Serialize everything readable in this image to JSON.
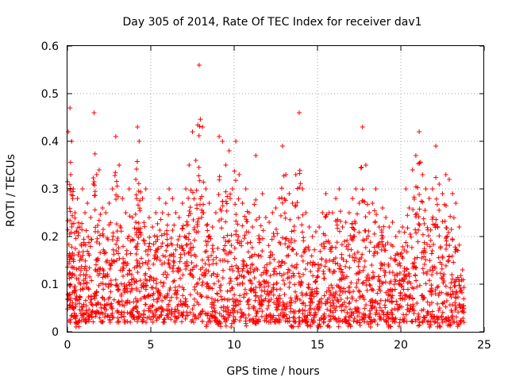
{
  "chart_data": {
    "type": "scatter",
    "title": "Day 305 of 2014, Rate Of TEC Index for receiver dav1",
    "xlabel": "GPS time / hours",
    "ylabel": "ROTI / TECUs",
    "xlim": [
      0,
      25
    ],
    "ylim": [
      0,
      0.6
    ],
    "x_ticks": [
      "0",
      "5",
      "10",
      "15",
      "20",
      "25"
    ],
    "y_ticks": [
      "0",
      "0.1",
      "0.2",
      "0.3",
      "0.4",
      "0.5",
      "0.6"
    ],
    "grid": true,
    "marker": "+",
    "color": "#ff0000",
    "series": [
      {
        "x": [
          0.05,
          0.15,
          0.25,
          0.35,
          0.45,
          0.6,
          0.75,
          0.9,
          1.05,
          1.2,
          1.4,
          1.6,
          1.75,
          1.9,
          2.1,
          2.3,
          2.5,
          2.7,
          2.9,
          3.1,
          3.3,
          3.5,
          3.7,
          3.9,
          4.1,
          4.2,
          4.3,
          4.5,
          4.7,
          4.9,
          5.1,
          5.3,
          5.5,
          5.7,
          5.9,
          6.1,
          6.3,
          6.5,
          6.7,
          6.9,
          7.1,
          7.3,
          7.5,
          7.7,
          7.9,
          8.1,
          8.3,
          8.5,
          8.7,
          8.9,
          9.1,
          9.3,
          9.5,
          9.7,
          9.9,
          10.1,
          10.3,
          10.5,
          10.7,
          10.9,
          11.1,
          11.3,
          11.5,
          11.7,
          11.9,
          12.1,
          12.3,
          12.5,
          12.7,
          12.9,
          13.1,
          13.3,
          13.5,
          13.7,
          13.9,
          14.1,
          14.3,
          14.5,
          14.7,
          14.9,
          15.1,
          15.3,
          15.5,
          15.7,
          15.9,
          16.1,
          16.3,
          16.5,
          16.7,
          16.9,
          17.1,
          17.3,
          17.5,
          17.7,
          17.9,
          18.1,
          18.3,
          18.5,
          18.7,
          18.9,
          19.1,
          19.3,
          19.5,
          19.7,
          19.9,
          20.1,
          20.3,
          20.5,
          20.7,
          20.9,
          21.1,
          21.3,
          21.5,
          21.7,
          21.9,
          22.1,
          22.3,
          22.5,
          22.7,
          22.9,
          23.1,
          23.3,
          23.5,
          23.7
        ],
        "y": [
          0.42,
          0.47,
          0.4,
          0.3,
          0.25,
          0.28,
          0.22,
          0.3,
          0.25,
          0.27,
          0.24,
          0.46,
          0.33,
          0.34,
          0.26,
          0.25,
          0.27,
          0.3,
          0.41,
          0.35,
          0.28,
          0.25,
          0.3,
          0.24,
          0.32,
          0.43,
          0.4,
          0.28,
          0.3,
          0.24,
          0.22,
          0.25,
          0.28,
          0.25,
          0.27,
          0.3,
          0.28,
          0.25,
          0.24,
          0.27,
          0.3,
          0.35,
          0.42,
          0.36,
          0.56,
          0.43,
          0.3,
          0.27,
          0.22,
          0.25,
          0.41,
          0.4,
          0.35,
          0.38,
          0.3,
          0.4,
          0.33,
          0.27,
          0.3,
          0.25,
          0.22,
          0.37,
          0.24,
          0.29,
          0.24,
          0.23,
          0.25,
          0.26,
          0.28,
          0.39,
          0.33,
          0.29,
          0.27,
          0.33,
          0.46,
          0.3,
          0.25,
          0.22,
          0.2,
          0.21,
          0.22,
          0.25,
          0.29,
          0.25,
          0.25,
          0.28,
          0.3,
          0.22,
          0.23,
          0.25,
          0.28,
          0.3,
          0.27,
          0.43,
          0.35,
          0.25,
          0.27,
          0.3,
          0.22,
          0.26,
          0.24,
          0.22,
          0.23,
          0.2,
          0.21,
          0.22,
          0.3,
          0.26,
          0.34,
          0.37,
          0.42,
          0.33,
          0.3,
          0.28,
          0.3,
          0.39,
          0.31,
          0.29,
          0.33,
          0.32,
          0.29,
          0.27,
          0.22,
          0.13
        ],
        "y_min": [
          0.02,
          0.03,
          0.02,
          0.03,
          0.02,
          0.01,
          0.02,
          0.03,
          0.02,
          0.02,
          0.03,
          0.02,
          0.03,
          0.02,
          0.02,
          0.03,
          0.02,
          0.03,
          0.02,
          0.02,
          0.03,
          0.02,
          0.02,
          0.03,
          0.02,
          0.02,
          0.03,
          0.02,
          0.02,
          0.03,
          0.02,
          0.02,
          0.03,
          0.02,
          0.02,
          0.03,
          0.02,
          0.02,
          0.03,
          0.02,
          0.02,
          0.03,
          0.02,
          0.02,
          0.03,
          0.02,
          0.01,
          0.02,
          0.03,
          0.02,
          0.01,
          0.02,
          0.01,
          0.02,
          0.01,
          0.02,
          0.01,
          0.02,
          0.01,
          0.02,
          0.02,
          0.01,
          0.02,
          0.03,
          0.02,
          0.02,
          0.03,
          0.02,
          0.02,
          0.03,
          0.02,
          0.02,
          0.01,
          0.02,
          0.01,
          0.02,
          0.02,
          0.01,
          0.02,
          0.02,
          0.01,
          0.02,
          0.02,
          0.01,
          0.02,
          0.02,
          0.01,
          0.02,
          0.02,
          0.01,
          0.02,
          0.02,
          0.01,
          0.02,
          0.02,
          0.01,
          0.02,
          0.02,
          0.01,
          0.02,
          0.02,
          0.01,
          0.02,
          0.02,
          0.01,
          0.02,
          0.02,
          0.01,
          0.02,
          0.02,
          0.01,
          0.02,
          0.02,
          0.01,
          0.02,
          0.02,
          0.01,
          0.02,
          0.02,
          0.01,
          0.02,
          0.02,
          0.01,
          0.02
        ]
      }
    ]
  }
}
